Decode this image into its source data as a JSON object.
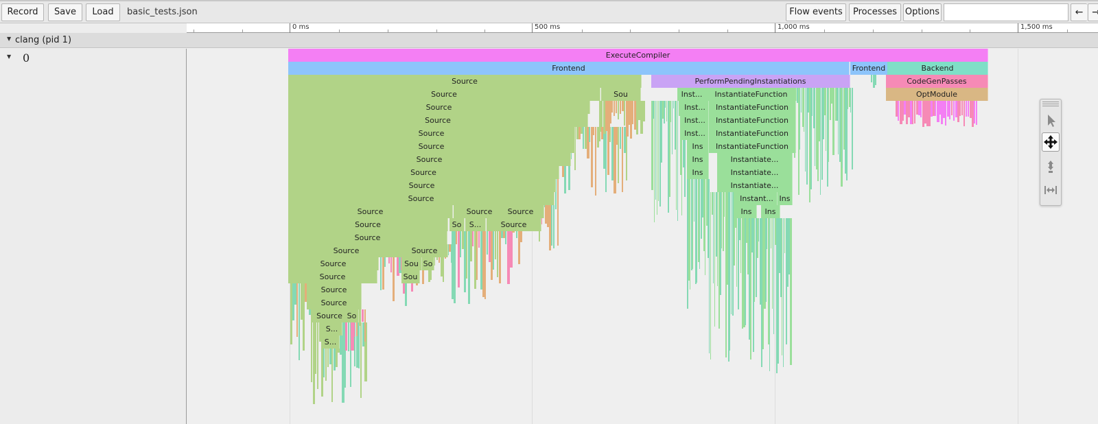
{
  "toolbar": {
    "record_label": "Record",
    "save_label": "Save",
    "load_label": "Load",
    "filename": "basic_tests.json",
    "flow_events_label": "Flow events",
    "processes_label": "Processes",
    "options_label": "Options",
    "search_value": "",
    "prev_icon": "left-arrow-icon",
    "next_icon": "right-arrow-icon"
  },
  "ruler": {
    "labels": [
      "0 ms",
      "500 ms",
      "1,000 ms",
      "1,500 ms"
    ]
  },
  "process": {
    "label": "clang (pid 1)",
    "icon": "collapse-triangle-icon"
  },
  "thread": {
    "label": "0",
    "icon": "collapse-triangle-icon"
  },
  "colors": {
    "execute": "#f47ff4",
    "frontend": "#8dc4fb",
    "backend": "#7fdfc7",
    "source": "#b1d387",
    "instantiate": "#9adf9a",
    "pending": "#c9a3f5",
    "codegen": "#f68ab6",
    "optmodule": "#d9b784",
    "orange": "#e4ae7a",
    "teal": "#84d9b4"
  },
  "slices": [
    {
      "label": "ExecuteCompiler",
      "color": "execute"
    },
    {
      "label": "Frontend",
      "color": "frontend"
    },
    {
      "label": "Frontend",
      "color": "frontend"
    },
    {
      "label": "Backend",
      "color": "backend"
    },
    {
      "label": "Source",
      "color": "source"
    },
    {
      "label": "PerformPendingInstantiations",
      "color": "pending"
    },
    {
      "label": "CodeGenPasses",
      "color": "codegen"
    },
    {
      "label": "Source",
      "color": "source"
    },
    {
      "label": "Sou",
      "color": "source"
    },
    {
      "label": "Inst...",
      "color": "instantiate"
    },
    {
      "label": "InstantiateFunction",
      "color": "instantiate"
    },
    {
      "label": "OptModule",
      "color": "optmodule"
    },
    {
      "label": "Source",
      "color": "source"
    },
    {
      "label": "Inst...",
      "color": "instantiate"
    },
    {
      "label": "InstantiateFunction",
      "color": "instantiate"
    },
    {
      "label": "Source",
      "color": "source"
    },
    {
      "label": "Inst...",
      "color": "instantiate"
    },
    {
      "label": "InstantiateFunction",
      "color": "instantiate"
    },
    {
      "label": "Source",
      "color": "source"
    },
    {
      "label": "Inst...",
      "color": "instantiate"
    },
    {
      "label": "InstantiateFunction",
      "color": "instantiate"
    },
    {
      "label": "Source",
      "color": "source"
    },
    {
      "label": "Ins",
      "color": "instantiate"
    },
    {
      "label": "InstantiateFunction",
      "color": "instantiate"
    },
    {
      "label": "Source",
      "color": "source"
    },
    {
      "label": "Ins",
      "color": "instantiate"
    },
    {
      "label": "Instantiate...",
      "color": "instantiate"
    },
    {
      "label": "Source",
      "color": "source"
    },
    {
      "label": "Ins",
      "color": "instantiate"
    },
    {
      "label": "Instantiate...",
      "color": "instantiate"
    },
    {
      "label": "Source",
      "color": "source"
    },
    {
      "label": "Instantiate...",
      "color": "instantiate"
    },
    {
      "label": "Source",
      "color": "source"
    },
    {
      "label": "Instant...",
      "color": "instantiate"
    },
    {
      "label": "Ins",
      "color": "instantiate"
    },
    {
      "label": "Source",
      "color": "source"
    },
    {
      "label": "Source",
      "color": "source"
    },
    {
      "label": "Source",
      "color": "source"
    },
    {
      "label": "Ins",
      "color": "instantiate"
    },
    {
      "label": "Ins",
      "color": "instantiate"
    },
    {
      "label": "Source",
      "color": "source"
    },
    {
      "label": "So",
      "color": "source"
    },
    {
      "label": "S...",
      "color": "source"
    },
    {
      "label": "Source",
      "color": "source"
    },
    {
      "label": "Source",
      "color": "source"
    },
    {
      "label": "Source",
      "color": "source"
    },
    {
      "label": "Source",
      "color": "source"
    },
    {
      "label": "Source",
      "color": "source"
    },
    {
      "label": "Sou",
      "color": "source"
    },
    {
      "label": "So",
      "color": "source"
    },
    {
      "label": "Source",
      "color": "source"
    },
    {
      "label": "Sou",
      "color": "source"
    },
    {
      "label": "Source",
      "color": "source"
    },
    {
      "label": "Source",
      "color": "source"
    },
    {
      "label": "Source",
      "color": "source"
    },
    {
      "label": "So",
      "color": "source"
    },
    {
      "label": "S...",
      "color": "source"
    },
    {
      "label": "S...",
      "color": "source"
    }
  ],
  "mode_selector": {
    "items": [
      {
        "icon": "selection-arrow-icon",
        "selected": false
      },
      {
        "icon": "pan-move-icon",
        "selected": true
      },
      {
        "icon": "zoom-vertical-icon",
        "selected": false
      },
      {
        "icon": "timing-horizontal-icon",
        "selected": false
      }
    ]
  }
}
